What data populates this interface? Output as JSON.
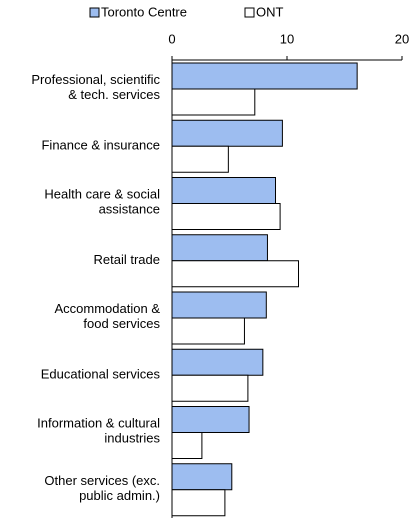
{
  "chart_data": {
    "type": "hbar",
    "categories": [
      "Professional, scientific\n& tech. services",
      "Finance & insurance",
      "Health care & social\nassistance",
      "Retail trade",
      "Accommodation &\nfood services",
      "Educational services",
      "Information & cultural\nindustries",
      "Other services (exc.\npublic admin.)"
    ],
    "series": [
      {
        "name": "Toronto Centre",
        "color": "#9dbdf0",
        "values": [
          16.1,
          9.6,
          9.0,
          8.3,
          8.2,
          7.9,
          6.7,
          5.2
        ]
      },
      {
        "name": "ONT",
        "color": "#ffffff",
        "values": [
          7.2,
          4.9,
          9.4,
          11.0,
          6.3,
          6.6,
          2.6,
          4.6
        ]
      }
    ],
    "xlim": [
      0,
      20
    ],
    "xticks": [
      0,
      10,
      20
    ],
    "legend": "top"
  }
}
